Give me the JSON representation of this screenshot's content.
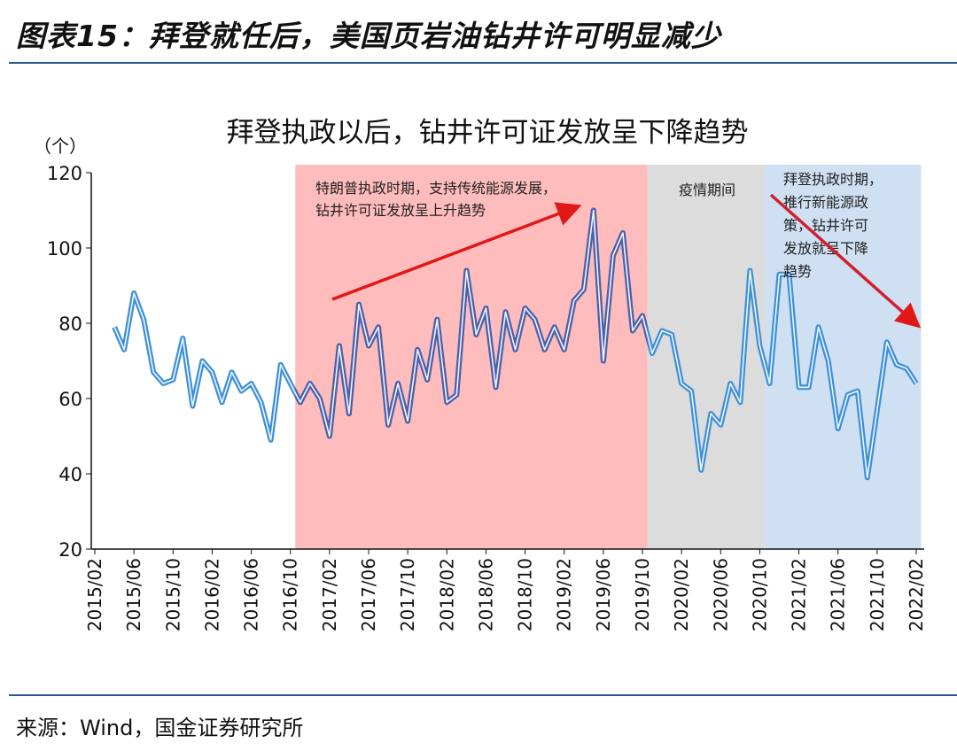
{
  "figure_title": "图表15：拜登就任后，美国页岩油钻井许可明显减少",
  "source": "来源：Wind，国金证券研究所",
  "chart_data": {
    "type": "line",
    "title": "拜登执政以后，钻井许可证发放呈下降趋势",
    "ylabel": "（个）",
    "xlabel": "",
    "ylim": [
      20,
      120
    ],
    "yticks": [
      20,
      40,
      60,
      80,
      100,
      120
    ],
    "xticks": [
      "2015/02",
      "2015/06",
      "2015/10",
      "2016/02",
      "2016/06",
      "2016/10",
      "2017/02",
      "2017/06",
      "2017/10",
      "2018/02",
      "2018/06",
      "2018/10",
      "2019/02",
      "2019/06",
      "2019/10",
      "2020/02",
      "2020/06",
      "2020/10",
      "2021/02",
      "2021/06",
      "2021/10",
      "2022/02"
    ],
    "x_start": "2015/04",
    "x_end": "2022/02",
    "values": [
      79,
      73,
      88,
      81,
      67,
      64,
      65,
      76,
      58,
      70,
      67,
      59,
      67,
      62,
      64,
      59,
      49,
      69,
      64,
      59,
      64,
      60,
      50,
      74,
      56,
      85,
      74,
      79,
      53,
      64,
      54,
      73,
      65,
      81,
      59,
      61,
      94,
      77,
      84,
      63,
      83,
      73,
      84,
      81,
      73,
      79,
      73,
      86,
      89,
      110,
      70,
      98,
      104,
      78,
      82,
      72,
      78,
      77,
      64,
      62,
      41,
      56,
      53,
      64,
      59,
      94,
      74,
      64,
      93,
      93,
      63,
      63,
      79,
      70,
      52,
      61,
      62,
      39,
      57,
      75,
      69,
      68,
      64
    ],
    "line_color": "#3d8fd6",
    "line_color_trump": "#4f5fa8",
    "grid": false,
    "shaded_periods": [
      {
        "start": "2016/11",
        "end": "2019/11",
        "color": "#ffbcbc",
        "label": "特朗普执政时期，支持传统能源发展，钻井许可证发放呈上升趋势"
      },
      {
        "start": "2019/11",
        "end": "2020/11",
        "color": "#dcdcdc",
        "label": "疫情期间"
      },
      {
        "start": "2020/11",
        "end": "2022/03",
        "color": "#cfe0f2",
        "label": "拜登执政时期，推行新能源政策，钻井许可发放就呈下降趋势"
      }
    ],
    "annotation_lines": {
      "trump": [
        "特朗普执政时期，支持传统能源发展，",
        "钻井许可证发放呈上升趋势"
      ],
      "covid": [
        "疫情期间"
      ],
      "biden": [
        "拜登执政时期，",
        "推行新能源政",
        "策，钻井许可",
        "发放就呈下降",
        "趋势"
      ]
    },
    "arrow_color": "#e01818"
  }
}
